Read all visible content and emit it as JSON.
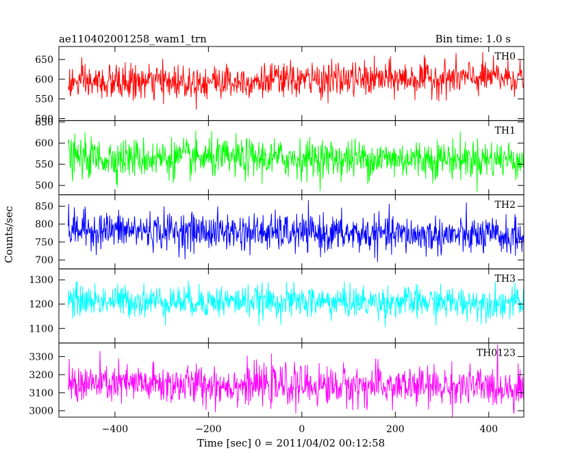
{
  "header": {
    "title": "ae110402001258_wam1_trn",
    "bin_time": "Bin time: 1.0 s"
  },
  "chart_data": {
    "type": "line",
    "xlabel": "Time [sec] 0 = 2011/04/02 00:12:58",
    "ylabel": "Counts/sec",
    "xlim": [
      -520,
      475
    ],
    "x_range": [
      -500,
      475
    ],
    "x_step": 1,
    "xticks": [
      -400,
      -200,
      0,
      200,
      400
    ],
    "grid": false,
    "panels": [
      {
        "name": "TH0",
        "color": "#ff0000",
        "ylim": [
          495,
          683
        ],
        "yticks": [
          500,
          550,
          600,
          650
        ],
        "mean_start": 590,
        "mean_end": 605,
        "sd": 22
      },
      {
        "name": "TH1",
        "color": "#00ff00",
        "ylim": [
          478,
          653
        ],
        "yticks": [
          500,
          550,
          600,
          650
        ],
        "mean_start": 565,
        "mean_end": 562,
        "sd": 23
      },
      {
        "name": "TH2",
        "color": "#0000ff",
        "ylim": [
          675,
          882
        ],
        "yticks": [
          700,
          750,
          800,
          850
        ],
        "mean_start": 785,
        "mean_end": 765,
        "sd": 26
      },
      {
        "name": "TH3",
        "color": "#00ffff",
        "ylim": [
          1040,
          1345
        ],
        "yticks": [
          1100,
          1200,
          1300
        ],
        "mean_start": 1215,
        "mean_end": 1205,
        "sd": 33
      },
      {
        "name": "TH0123",
        "color": "#ff00ff",
        "ylim": [
          2965,
          3375
        ],
        "yticks": [
          3000,
          3100,
          3200,
          3300
        ],
        "mean_start": 3150,
        "mean_end": 3130,
        "sd": 55
      }
    ]
  }
}
